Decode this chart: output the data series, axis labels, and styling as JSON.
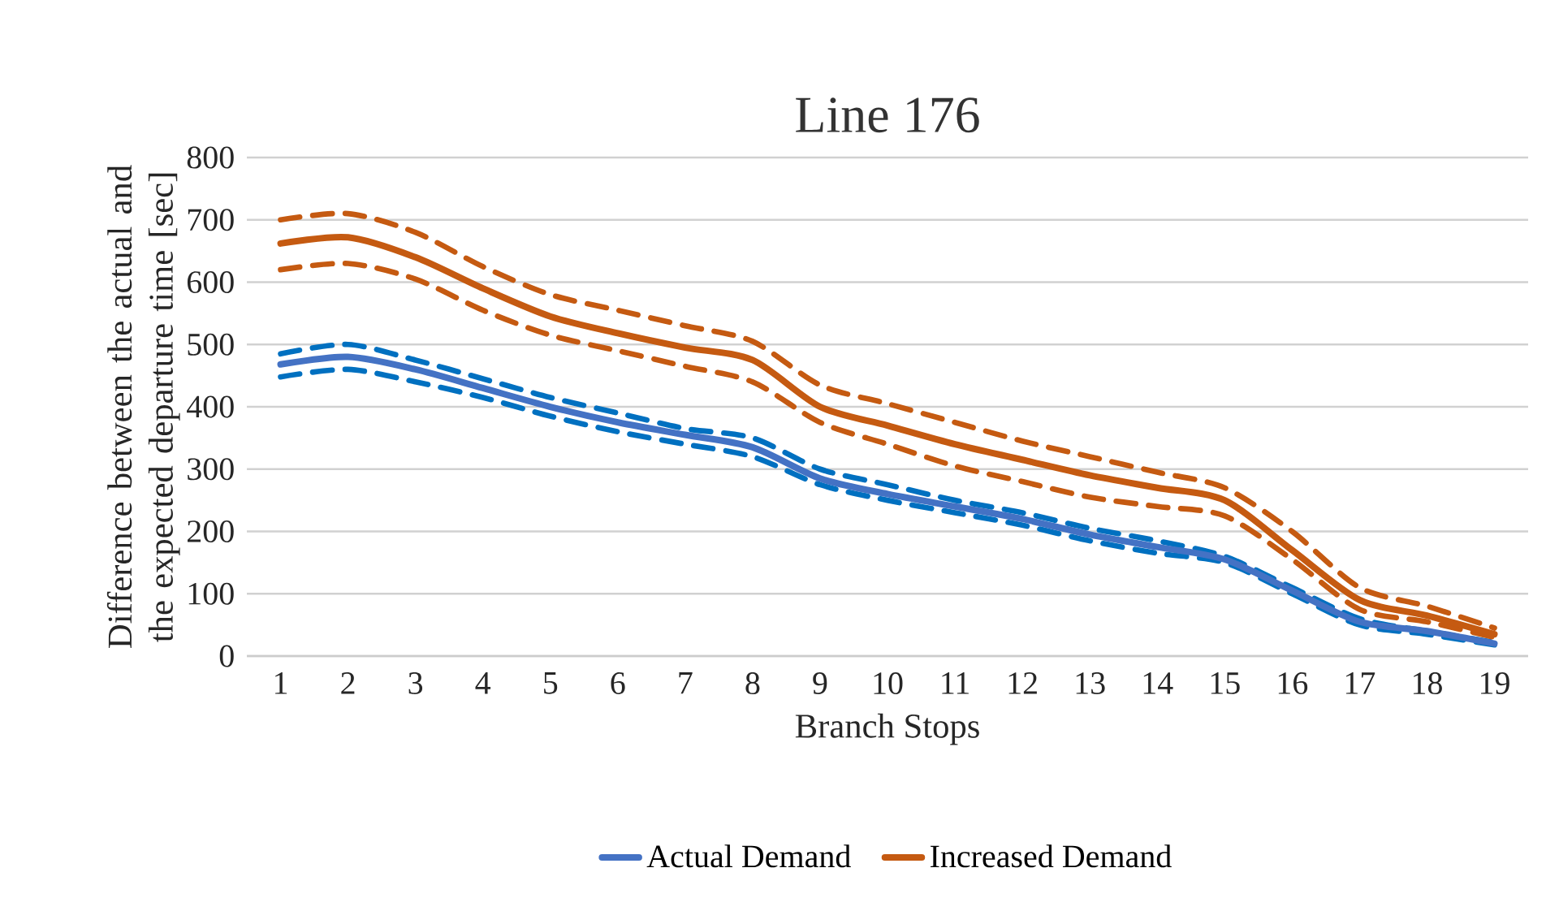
{
  "chart_data": {
    "type": "line",
    "title": "Line 176",
    "xlabel": "Branch Stops",
    "ylabel": "Difference between the actual and the expected departure time [sec]",
    "categories": [
      "1",
      "2",
      "3",
      "4",
      "5",
      "6",
      "7",
      "8",
      "9",
      "10",
      "11",
      "12",
      "13",
      "14",
      "15",
      "16",
      "17",
      "18",
      "19"
    ],
    "ylim": [
      0,
      800
    ],
    "yticks": [
      0,
      100,
      200,
      300,
      400,
      500,
      600,
      700,
      800
    ],
    "grid": "y",
    "legend": "bottom",
    "series": [
      {
        "color": "#0070c0",
        "line_style": "dashed",
        "values": [
          485,
          500,
          475,
          445,
          415,
          390,
          365,
          350,
          300,
          275,
          250,
          230,
          205,
          185,
          160,
          110,
          60,
          40,
          22
        ]
      },
      {
        "color": "#0070c0",
        "line_style": "dashed",
        "values": [
          448,
          460,
          440,
          415,
          385,
          360,
          340,
          320,
          275,
          250,
          230,
          210,
          185,
          165,
          150,
          100,
          50,
          35,
          18
        ]
      },
      {
        "color": "#c55a11",
        "line_style": "dashed",
        "values": [
          700,
          710,
          680,
          625,
          580,
          555,
          530,
          505,
          435,
          405,
          375,
          345,
          320,
          295,
          270,
          200,
          110,
          80,
          45
        ]
      },
      {
        "color": "#c55a11",
        "line_style": "dashed",
        "values": [
          620,
          630,
          605,
          555,
          515,
          490,
          465,
          440,
          375,
          340,
          305,
          280,
          255,
          240,
          225,
          155,
          75,
          55,
          30
        ]
      },
      {
        "name": "Actual Demand",
        "color": "#4472c4",
        "line_style": "solid",
        "values": [
          468,
          480,
          460,
          430,
          400,
          375,
          355,
          335,
          285,
          260,
          240,
          220,
          195,
          175,
          155,
          105,
          55,
          40,
          20
        ]
      },
      {
        "name": "Increased Demand",
        "color": "#c55a11",
        "line_style": "solid",
        "values": [
          662,
          672,
          640,
          590,
          545,
          518,
          495,
          475,
          400,
          370,
          340,
          315,
          290,
          270,
          250,
          170,
          90,
          65,
          35
        ]
      }
    ]
  }
}
